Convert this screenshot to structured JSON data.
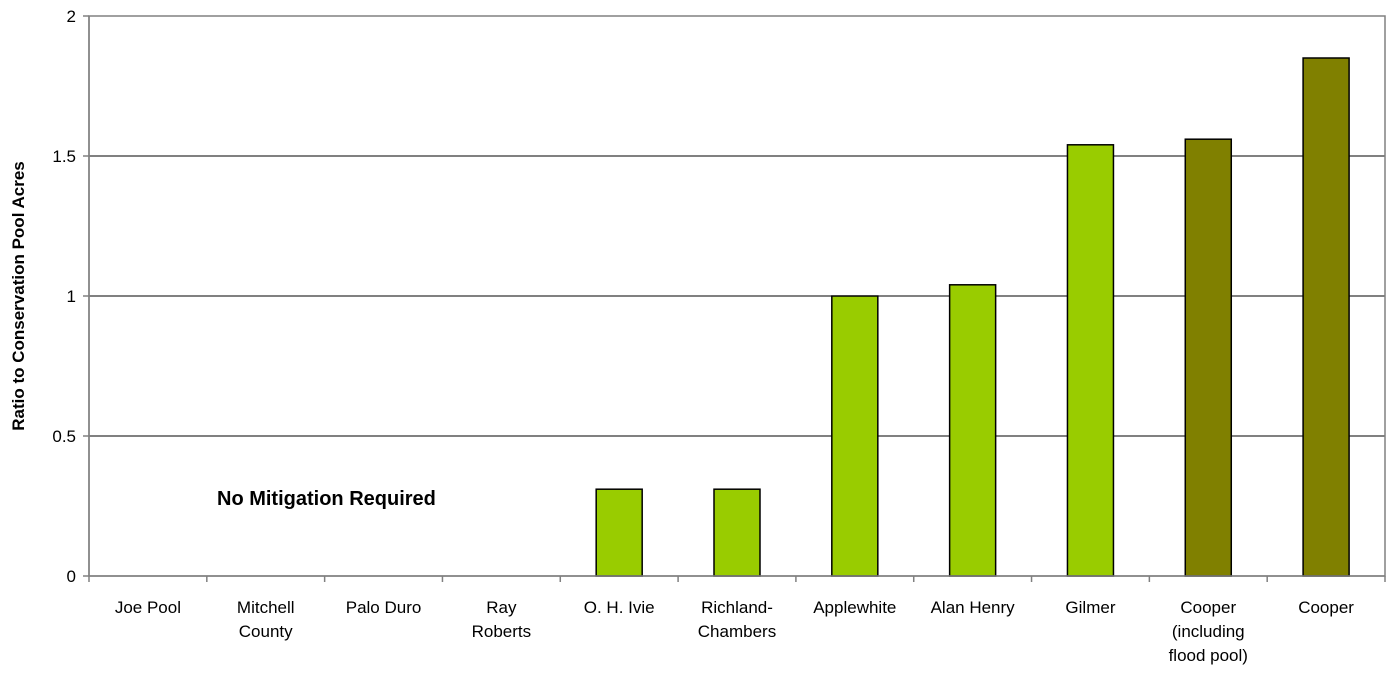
{
  "chart_data": {
    "type": "bar",
    "categories": [
      [
        "Joe Pool"
      ],
      [
        "Mitchell",
        "County"
      ],
      [
        "Palo Duro"
      ],
      [
        "Ray",
        "Roberts"
      ],
      [
        "O. H. Ivie"
      ],
      [
        "Richland-",
        "Chambers"
      ],
      [
        "Applewhite"
      ],
      [
        "Alan Henry"
      ],
      [
        "Gilmer"
      ],
      [
        "Cooper",
        "(including",
        "flood pool)"
      ],
      [
        "Cooper"
      ]
    ],
    "values": [
      0,
      0,
      0,
      0,
      0.31,
      0.31,
      1.0,
      1.04,
      1.54,
      1.56,
      1.85
    ],
    "bar_colors": [
      "#99CC00",
      "#99CC00",
      "#99CC00",
      "#99CC00",
      "#99CC00",
      "#99CC00",
      "#99CC00",
      "#99CC00",
      "#99CC00",
      "#808000",
      "#808000"
    ],
    "title": "",
    "xlabel": "",
    "ylabel": "Ratio to Conservation Pool Acres",
    "ylim": [
      0,
      2
    ],
    "yticks": [
      0,
      0.5,
      1,
      1.5,
      2
    ],
    "ytick_labels": [
      "0",
      "0.5",
      "1",
      "1.5",
      "2"
    ],
    "grid": true,
    "annotation": "No Mitigation Required"
  }
}
